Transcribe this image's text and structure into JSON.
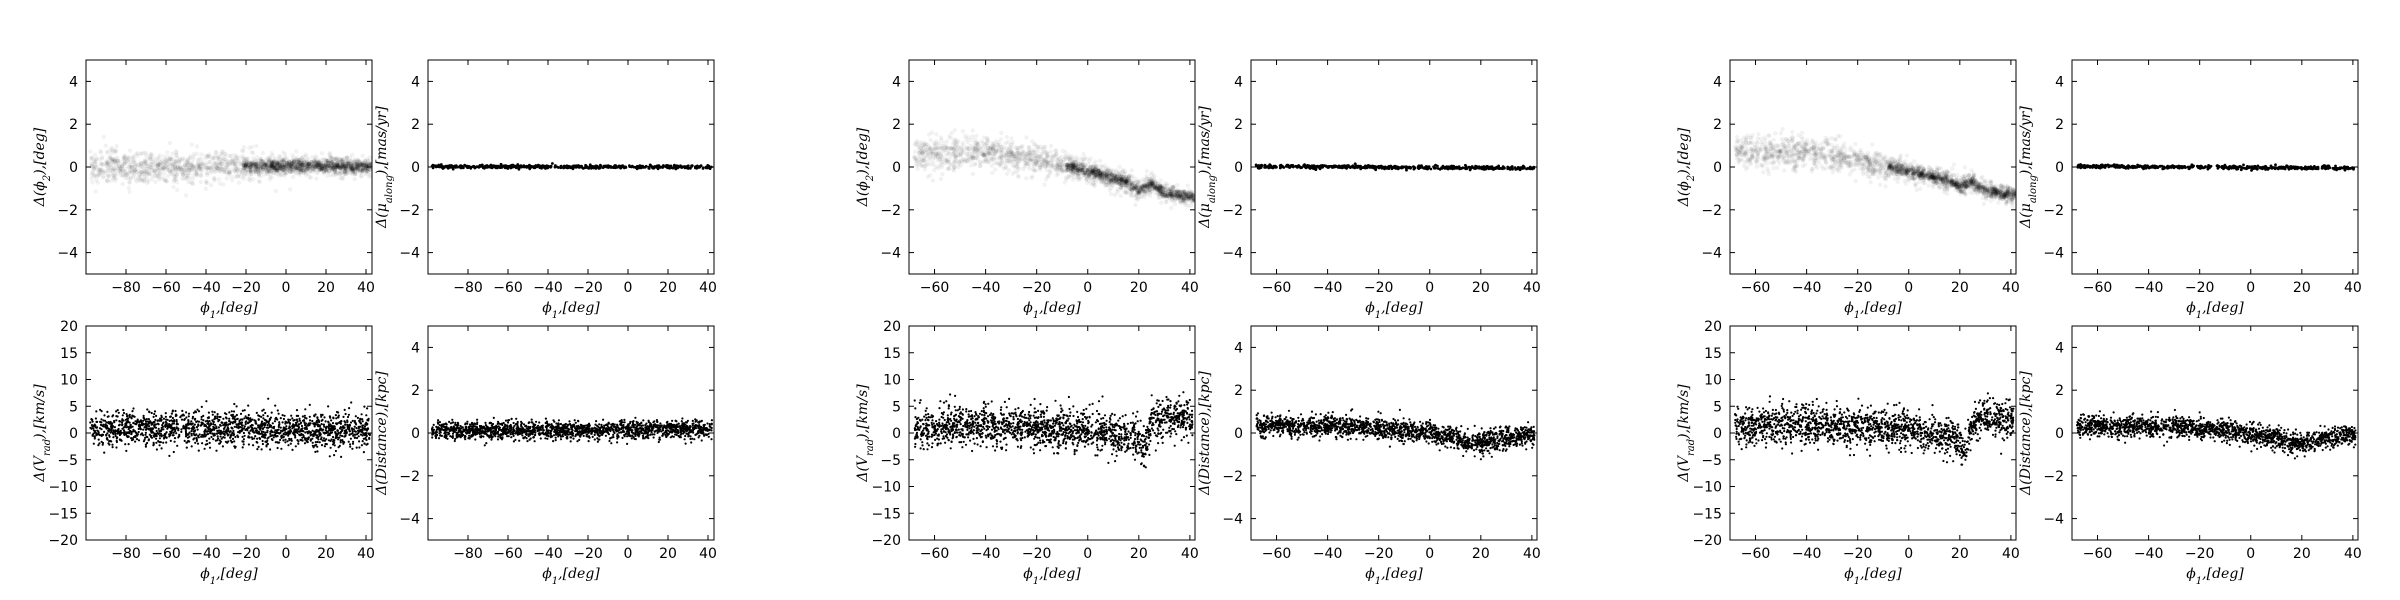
{
  "chart_data": [
    {
      "group": "left",
      "panels": [
        {
          "type": "scatter",
          "style": "density",
          "xlabel": "ϕ1,[deg]",
          "ylabel": "Δ(ϕ2),[deg]",
          "xlim": [
            -100,
            43
          ],
          "ylim": [
            -5,
            5
          ],
          "xticks": [
            -80,
            -60,
            -40,
            -20,
            0,
            20,
            40
          ],
          "yticks": [
            -4,
            -2,
            0,
            2,
            4
          ],
          "trend": [
            [
              -100,
              0.0
            ],
            [
              -60,
              0.0
            ],
            [
              -20,
              0.05
            ],
            [
              20,
              0.05
            ],
            [
              43,
              0.0
            ]
          ],
          "spread": 0.35
        },
        {
          "type": "scatter",
          "style": "line",
          "xlabel": "ϕ1,[deg]",
          "ylabel": "Δ(μalong),[mas/yr]",
          "xlim": [
            -100,
            43
          ],
          "ylim": [
            -5,
            5
          ],
          "xticks": [
            -80,
            -60,
            -40,
            -20,
            0,
            20,
            40
          ],
          "yticks": [
            -4,
            -2,
            0,
            2,
            4
          ],
          "trend": [
            [
              -100,
              0.02
            ],
            [
              43,
              0.0
            ]
          ],
          "spread": 0.04
        },
        {
          "type": "scatter",
          "style": "points",
          "xlabel": "ϕ1,[deg]",
          "ylabel": "Δ(Vrad),[km/s]",
          "xlim": [
            -100,
            43
          ],
          "ylim": [
            -20,
            20
          ],
          "xticks": [
            -80,
            -60,
            -40,
            -20,
            0,
            20,
            40
          ],
          "yticks": [
            -20,
            -15,
            -10,
            -5,
            0,
            5,
            10,
            15,
            20
          ],
          "trend": [
            [
              -100,
              0.5
            ],
            [
              -40,
              1.0
            ],
            [
              0,
              0.5
            ],
            [
              43,
              0.5
            ]
          ],
          "spread": 1.6
        },
        {
          "type": "scatter",
          "style": "points",
          "xlabel": "ϕ1,[deg]",
          "ylabel": "Δ(Distance),[kpc]",
          "xlim": [
            -100,
            43
          ],
          "ylim": [
            -5,
            5
          ],
          "xticks": [
            -80,
            -60,
            -40,
            -20,
            0,
            20,
            40
          ],
          "yticks": [
            -4,
            -2,
            0,
            2,
            4
          ],
          "trend": [
            [
              -95,
              0.1
            ],
            [
              0,
              0.15
            ],
            [
              43,
              0.15
            ]
          ],
          "spread": 0.2
        }
      ]
    },
    {
      "group": "middle",
      "panels": [
        {
          "type": "scatter",
          "style": "density",
          "xlabel": "ϕ1,[deg]",
          "ylabel": "Δ(ϕ2),[deg]",
          "xlim": [
            -70,
            42
          ],
          "ylim": [
            -5,
            5
          ],
          "xticks": [
            -60,
            -40,
            -20,
            0,
            20,
            40
          ],
          "yticks": [
            -4,
            -2,
            0,
            2,
            4
          ],
          "trend": [
            [
              -70,
              0.6
            ],
            [
              -40,
              0.7
            ],
            [
              -20,
              0.4
            ],
            [
              0,
              -0.2
            ],
            [
              15,
              -0.7
            ],
            [
              20,
              -1.1
            ],
            [
              25,
              -0.8
            ],
            [
              30,
              -1.2
            ],
            [
              40,
              -1.4
            ]
          ],
          "spread": 0.35
        },
        {
          "type": "scatter",
          "style": "line",
          "xlabel": "ϕ1,[deg]",
          "ylabel": "Δ(μalong),[mas/yr]",
          "xlim": [
            -70,
            42
          ],
          "ylim": [
            -5,
            5
          ],
          "xticks": [
            -60,
            -40,
            -20,
            0,
            20,
            40
          ],
          "yticks": [
            -4,
            -2,
            0,
            2,
            4
          ],
          "trend": [
            [
              -70,
              0.03
            ],
            [
              40,
              -0.05
            ]
          ],
          "spread": 0.04
        },
        {
          "type": "scatter",
          "style": "points",
          "xlabel": "ϕ1,[deg]",
          "ylabel": "Δ(Vrad),[km/s]",
          "xlim": [
            -70,
            42
          ],
          "ylim": [
            -20,
            20
          ],
          "xticks": [
            -60,
            -40,
            -20,
            0,
            20,
            40
          ],
          "yticks": [
            -20,
            -15,
            -10,
            -5,
            0,
            5,
            10,
            15,
            20
          ],
          "trend": [
            [
              -70,
              1.0
            ],
            [
              -40,
              1.5
            ],
            [
              0,
              0.5
            ],
            [
              18,
              -1.0
            ],
            [
              22,
              -3.0
            ],
            [
              25,
              2.0
            ],
            [
              30,
              3.0
            ],
            [
              40,
              2.5
            ]
          ],
          "spread": 1.8
        },
        {
          "type": "scatter",
          "style": "points",
          "xlabel": "ϕ1,[deg]",
          "ylabel": "Δ(Distance),[kpc]",
          "xlim": [
            -70,
            42
          ],
          "ylim": [
            -5,
            5
          ],
          "xticks": [
            -60,
            -40,
            -20,
            0,
            20,
            40
          ],
          "yticks": [
            -4,
            -2,
            0,
            2,
            4
          ],
          "trend": [
            [
              -70,
              0.35
            ],
            [
              -30,
              0.3
            ],
            [
              0,
              0.0
            ],
            [
              20,
              -0.5
            ],
            [
              30,
              -0.2
            ],
            [
              40,
              -0.1
            ]
          ],
          "spread": 0.25
        }
      ]
    },
    {
      "group": "right",
      "panels": [
        {
          "type": "scatter",
          "style": "density",
          "xlabel": "ϕ1,[deg]",
          "ylabel": "Δ(ϕ2),[deg]",
          "xlim": [
            -70,
            42
          ],
          "ylim": [
            -5,
            5
          ],
          "xticks": [
            -60,
            -40,
            -20,
            0,
            20,
            40
          ],
          "yticks": [
            -4,
            -2,
            0,
            2,
            4
          ],
          "trend": [
            [
              -70,
              0.7
            ],
            [
              -40,
              0.7
            ],
            [
              -20,
              0.3
            ],
            [
              0,
              -0.2
            ],
            [
              15,
              -0.6
            ],
            [
              20,
              -0.9
            ],
            [
              25,
              -0.7
            ],
            [
              30,
              -1.1
            ],
            [
              40,
              -1.3
            ]
          ],
          "spread": 0.35
        },
        {
          "type": "scatter",
          "style": "line",
          "xlabel": "ϕ1,[deg]",
          "ylabel": "Δ(μalong),[mas/yr]",
          "xlim": [
            -70,
            42
          ],
          "ylim": [
            -5,
            5
          ],
          "xticks": [
            -60,
            -40,
            -20,
            0,
            20,
            40
          ],
          "yticks": [
            -4,
            -2,
            0,
            2,
            4
          ],
          "trend": [
            [
              -70,
              0.03
            ],
            [
              40,
              -0.05
            ]
          ],
          "spread": 0.04
        },
        {
          "type": "scatter",
          "style": "points",
          "xlabel": "ϕ1,[deg]",
          "ylabel": "Δ(Vrad),[km/s]",
          "xlim": [
            -70,
            42
          ],
          "ylim": [
            -20,
            20
          ],
          "xticks": [
            -60,
            -40,
            -20,
            0,
            20,
            40
          ],
          "yticks": [
            -20,
            -15,
            -10,
            -5,
            0,
            5,
            10,
            15,
            20
          ],
          "trend": [
            [
              -70,
              1.0
            ],
            [
              -40,
              1.5
            ],
            [
              0,
              0.5
            ],
            [
              18,
              -1.0
            ],
            [
              22,
              -3.0
            ],
            [
              25,
              2.0
            ],
            [
              30,
              3.0
            ],
            [
              40,
              2.5
            ]
          ],
          "spread": 1.8
        },
        {
          "type": "scatter",
          "style": "points",
          "xlabel": "ϕ1,[deg]",
          "ylabel": "Δ(Distance),[kpc]",
          "xlim": [
            -70,
            42
          ],
          "ylim": [
            -5,
            5
          ],
          "xticks": [
            -60,
            -40,
            -20,
            0,
            20,
            40
          ],
          "yticks": [
            -4,
            -2,
            0,
            2,
            4
          ],
          "trend": [
            [
              -70,
              0.35
            ],
            [
              -30,
              0.3
            ],
            [
              0,
              0.0
            ],
            [
              20,
              -0.5
            ],
            [
              30,
              -0.2
            ],
            [
              40,
              -0.1
            ]
          ],
          "spread": 0.25
        }
      ]
    }
  ]
}
